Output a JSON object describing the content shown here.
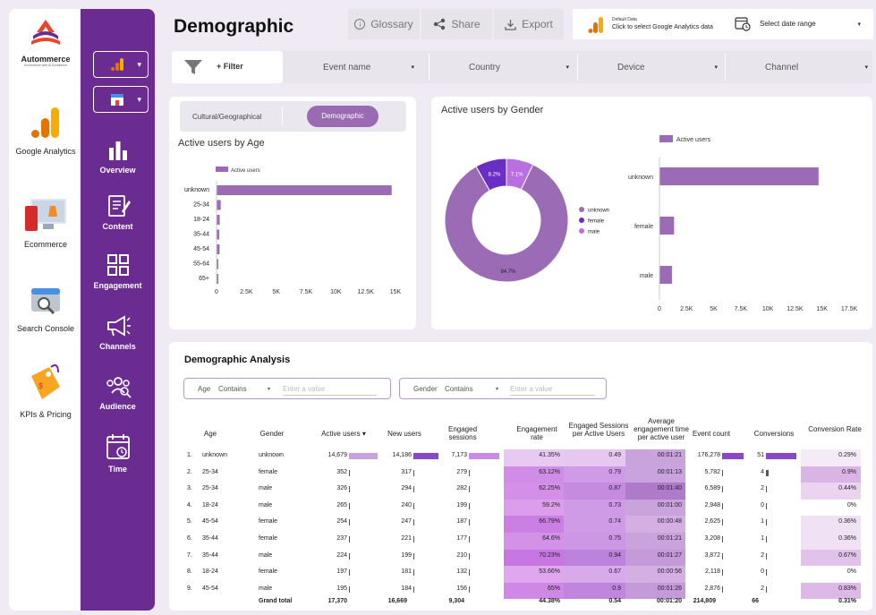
{
  "brand": {
    "name": "Autommerce",
    "tagline": "Ecommerce with AI Excellence"
  },
  "apps": [
    {
      "label": "Google Analytics",
      "icon": "google-analytics-icon"
    },
    {
      "label": "Ecommerce",
      "icon": "ecommerce-icon"
    },
    {
      "label": "Search Console",
      "icon": "search-console-icon"
    },
    {
      "label": "KPIs & Pricing",
      "icon": "kpi-pricing-icon"
    }
  ],
  "nav": [
    {
      "label": "Overview",
      "icon": "bar-chart-icon"
    },
    {
      "label": "Content",
      "icon": "content-icon"
    },
    {
      "label": "Engagement",
      "icon": "grid-icon"
    },
    {
      "label": "Channels",
      "icon": "megaphone-icon"
    },
    {
      "label": "Audience",
      "icon": "audience-icon"
    },
    {
      "label": "Time",
      "icon": "calendar-icon"
    }
  ],
  "header": {
    "title": "Demographic",
    "glossary": "Glossary",
    "share": "Share",
    "export": "Export",
    "data_label": "Default Data",
    "data_hint": "Click to select Google Analytics data",
    "date_range": "Select date range"
  },
  "filters": {
    "add": "+ Filter",
    "items": [
      "Event name",
      "Country",
      "Device",
      "Channel"
    ]
  },
  "toggle": {
    "option1": "Cultural/Geographical",
    "option2": "Demographic"
  },
  "age_chart": {
    "title": "Active users by Age",
    "legend": "Active users",
    "categories": [
      "unknown",
      "25-34",
      "18-24",
      "35-44",
      "45-54",
      "55-64",
      "65+"
    ],
    "values": [
      14679,
      352,
      265,
      224,
      254,
      90,
      60
    ],
    "ticks": [
      "0",
      "2.5K",
      "5K",
      "7.5K",
      "10K",
      "12.5K",
      "15K"
    ],
    "color": "#9b6cb5"
  },
  "gender_chart": {
    "title": "Active users by Gender",
    "pie": {
      "labels": [
        "unknown",
        "female",
        "male"
      ],
      "values": [
        84.7,
        8.2,
        7.1
      ],
      "display": [
        "84.7%",
        "8.2%",
        "7.1%"
      ],
      "colors": [
        "#9b6cb5",
        "#6a2ec4",
        "#b96fe0"
      ]
    },
    "bar_legend": "Active users",
    "categories": [
      "unknown",
      "female",
      "male"
    ],
    "values": [
      14679,
      1350,
      1150
    ],
    "ticks": [
      "0",
      "2.5K",
      "5K",
      "7.5K",
      "10K",
      "12.5K",
      "15K",
      "17.5K"
    ]
  },
  "table": {
    "title": "Demographic Analysis",
    "age_filter": {
      "label": "Age",
      "op": "Contains",
      "placeholder": "Enter a value"
    },
    "gender_filter": {
      "label": "Gender",
      "op": "Contains",
      "placeholder": "Enter a value"
    },
    "columns": [
      "Age",
      "Gender",
      "Active users ▾",
      "New users",
      "Engaged sessions",
      "Engagement rate",
      "Engaged Sessions per Active Users",
      "Average engagement time per active user",
      "Event count",
      "Conversions",
      "Conversion Rate"
    ],
    "rows": [
      [
        "1.",
        "unknown",
        "unknown",
        "14,679",
        "14,186",
        "7,173",
        "41.35%",
        "0.49",
        "00:01:21",
        "176,278",
        "51",
        "0.29%"
      ],
      [
        "2.",
        "25-34",
        "female",
        "352",
        "317",
        "279",
        "63.12%",
        "0.79",
        "00:01:13",
        "5,782",
        "4",
        "0.9%"
      ],
      [
        "3.",
        "25-34",
        "male",
        "326",
        "294",
        "282",
        "62.25%",
        "0.87",
        "00:01:40",
        "6,589",
        "2",
        "0.44%"
      ],
      [
        "4.",
        "18-24",
        "male",
        "265",
        "240",
        "199",
        "59.2%",
        "0.73",
        "00:01:00",
        "2,948",
        "0",
        "0%"
      ],
      [
        "5.",
        "45-54",
        "female",
        "254",
        "247",
        "187",
        "66.79%",
        "0.74",
        "00:00:48",
        "2,625",
        "1",
        "0.36%"
      ],
      [
        "6.",
        "35-44",
        "female",
        "237",
        "221",
        "177",
        "64.6%",
        "0.75",
        "00:01:21",
        "3,208",
        "1",
        "0.36%"
      ],
      [
        "7.",
        "35-44",
        "male",
        "224",
        "199",
        "210",
        "70.23%",
        "0.94",
        "00:01:27",
        "3,872",
        "2",
        "0.67%"
      ],
      [
        "8.",
        "18-24",
        "female",
        "197",
        "181",
        "132",
        "53.66%",
        "0.67",
        "00:00:56",
        "2,118",
        "0",
        "0%"
      ],
      [
        "9.",
        "45-54",
        "male",
        "195",
        "184",
        "156",
        "65%",
        "0.9",
        "00:01:26",
        "2,876",
        "2",
        "0.83%"
      ]
    ],
    "grand_total": [
      "Grand total",
      "17,370",
      "16,669",
      "9,304",
      "44.38%",
      "0.54",
      "00:01:20",
      "214,809",
      "66",
      "0.31%"
    ]
  },
  "colors": {
    "nav": "#6b2c91",
    "accent": "#9b6cb5"
  }
}
